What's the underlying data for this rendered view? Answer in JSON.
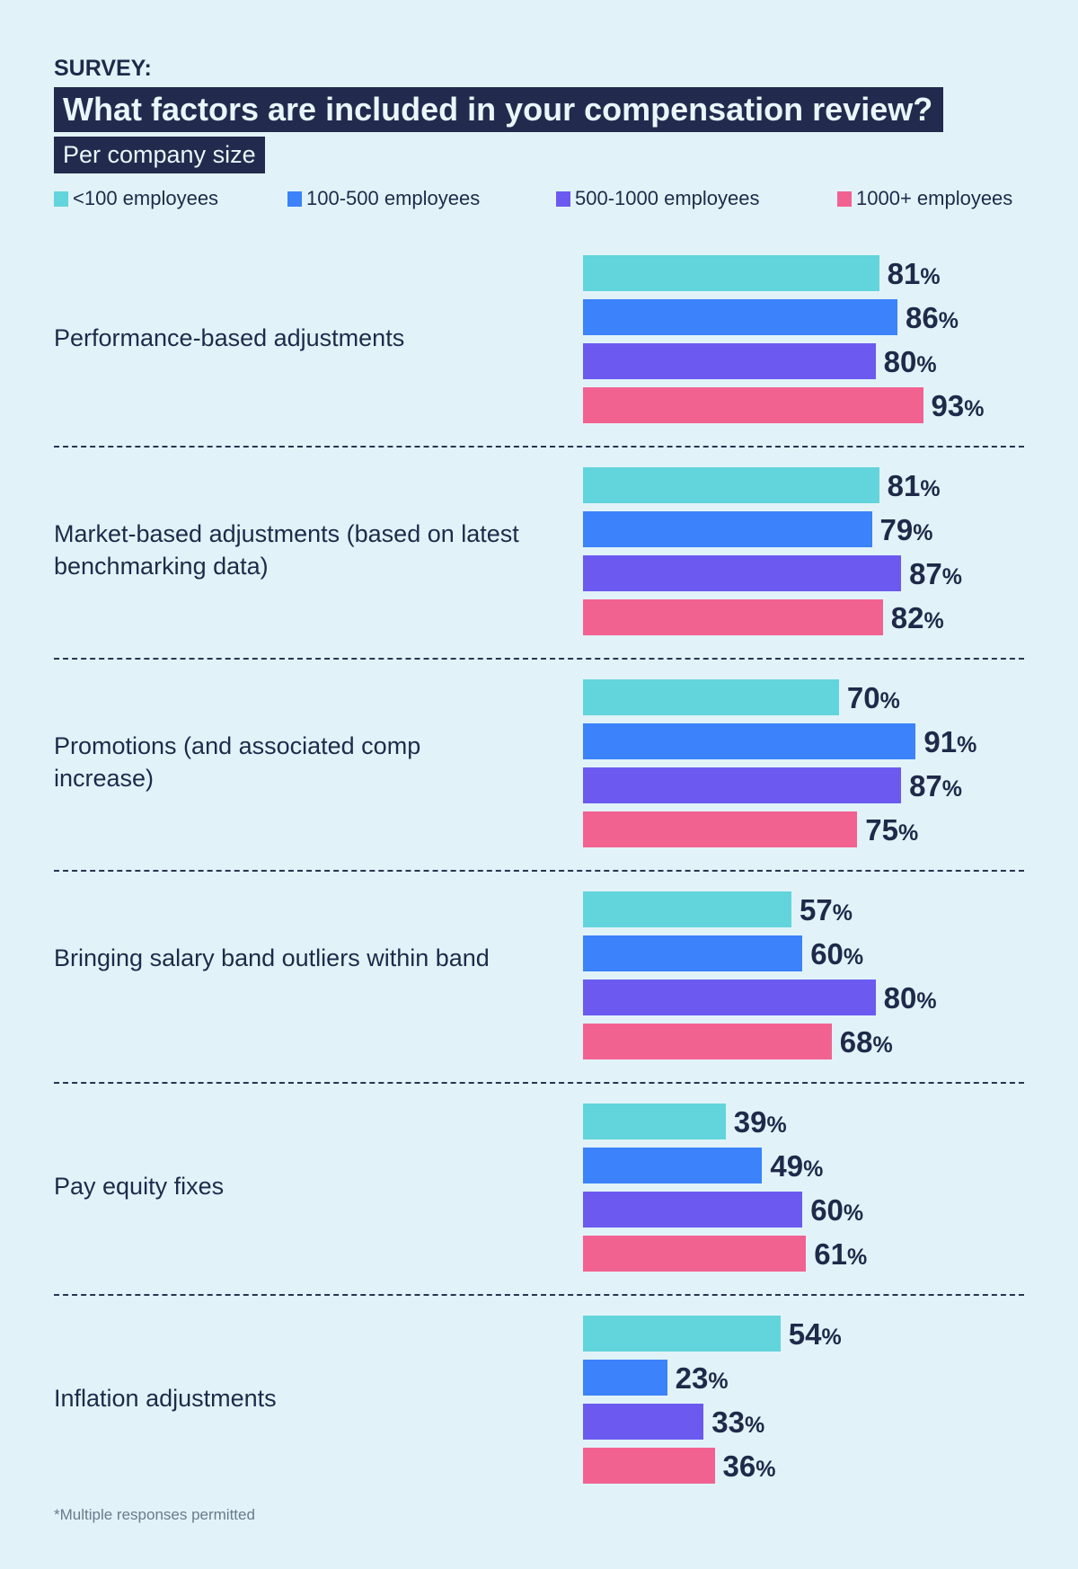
{
  "header": {
    "eyebrow": "SURVEY:",
    "title": "What factors are included in your compensation review?",
    "subtitle": "Per company size"
  },
  "footnote": "*Multiple responses permitted",
  "chart_data": {
    "type": "bar",
    "orientation": "horizontal",
    "title": "What factors are included in your compensation review?",
    "subtitle": "Per company size",
    "xlabel": "",
    "ylabel": "",
    "xlim": [
      0,
      100
    ],
    "value_suffix": "%",
    "grid": false,
    "legend_position": "top",
    "categories": [
      "Performance-based adjustments",
      "Market-based adjustments (based on latest benchmarking data)",
      "Promotions (and associated comp increase)",
      "Bringing salary band outliers within band",
      "Pay equity fixes",
      "Inflation adjustments"
    ],
    "series": [
      {
        "name": "<100 employees",
        "color": "#62d4dc",
        "values": [
          81,
          81,
          70,
          57,
          39,
          54
        ]
      },
      {
        "name": "100-500 employees",
        "color": "#3b82fb",
        "values": [
          86,
          79,
          91,
          60,
          49,
          23
        ]
      },
      {
        "name": "500-1000 employees",
        "color": "#6c5af0",
        "values": [
          80,
          87,
          87,
          80,
          60,
          33
        ]
      },
      {
        "name": "1000+ employees",
        "color": "#f26291",
        "values": [
          93,
          82,
          75,
          68,
          61,
          36
        ]
      }
    ]
  }
}
